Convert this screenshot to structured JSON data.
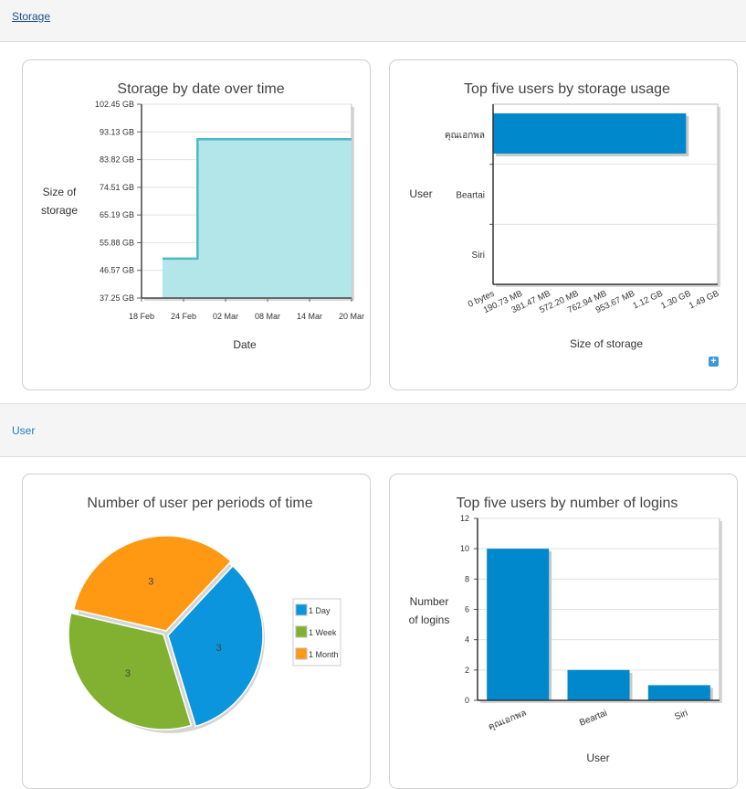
{
  "sections": {
    "storage": {
      "label": "Storage"
    },
    "user": {
      "label": "User"
    }
  },
  "colors": {
    "link_blue": "#1a6fb0",
    "bar_blue": "#0088cc",
    "area_fill": "#b3e6e8",
    "area_line": "#4cb8c4",
    "pie_blue": "#0a95dc",
    "pie_green": "#82b131",
    "pie_orange": "#ff9914"
  },
  "chart_data": [
    {
      "type": "area",
      "title": "Storage by date over time",
      "ylabel": "Size of storage",
      "xlabel": "Date",
      "y_ticks": [
        "37.25 GB",
        "46.57 GB",
        "55.88 GB",
        "65.19 GB",
        "74.51 GB",
        "83.82 GB",
        "93.13 GB",
        "102.45 GB"
      ],
      "x_ticks": [
        "18 Feb",
        "24 Feb",
        "02 Mar",
        "08 Mar",
        "14 Mar",
        "20 Mar"
      ],
      "ylim_gb": [
        37.25,
        102.45
      ],
      "x": [
        "2014-02-21",
        "2014-02-26",
        "2014-02-26",
        "2014-02-27",
        "2014-02-27",
        "2014-03-20"
      ],
      "y_gb": [
        50.5,
        50.5,
        90.7,
        90.7,
        90.7,
        90.7
      ]
    },
    {
      "type": "bar",
      "orientation": "horizontal",
      "title": "Top five users by storage usage",
      "ylabel": "User",
      "xlabel": "Size of storage",
      "categories": [
        "คุณเอกพล",
        "Beartai",
        "Siri"
      ],
      "values_gb": [
        1.28,
        0,
        0
      ],
      "x_ticks": [
        "0 bytes",
        "190.73 MB",
        "381.47 MB",
        "572.20 MB",
        "762.94 MB",
        "953.67 MB",
        "1.12 GB",
        "1.30 GB",
        "1.49 GB"
      ],
      "xlim_gb": [
        0,
        1.49
      ]
    },
    {
      "type": "pie",
      "title": "Number of user per periods of time",
      "slices": [
        {
          "label": "1 Day",
          "value": 3,
          "color": "#0a95dc"
        },
        {
          "label": "1 Week",
          "value": 3,
          "color": "#82b131"
        },
        {
          "label": "1 Month",
          "value": 3,
          "color": "#ff9914"
        }
      ],
      "legend_position": "right"
    },
    {
      "type": "bar",
      "title": "Top five users by number of logins",
      "ylabel": "Number of logins",
      "xlabel": "User",
      "categories": [
        "คุณเอกพล",
        "Beartai",
        "Siri"
      ],
      "values": [
        10,
        2,
        1
      ],
      "y_ticks": [
        "0",
        "2",
        "4",
        "6",
        "8",
        "10",
        "12"
      ],
      "ylim": [
        0,
        12
      ]
    }
  ],
  "ui": {
    "expand_icon": "plus-square-icon"
  }
}
